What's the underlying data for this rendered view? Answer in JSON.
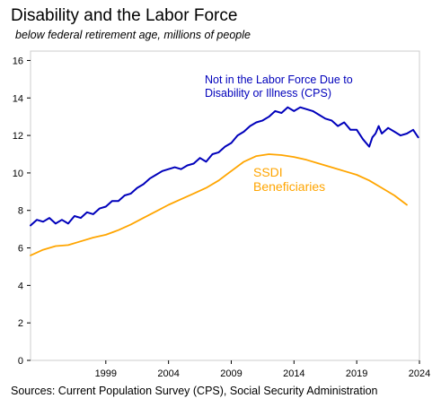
{
  "title": "Disability and the Labor Force",
  "subtitle": "below federal retirement age, millions of people",
  "source": "Sources: Current Population Survey (CPS), Social Security Administration",
  "colors": {
    "cps": "#0000bb",
    "ssdi": "#ffa500",
    "frame": "#cccccc"
  },
  "chart_data": {
    "type": "line",
    "xlim": [
      1993,
      2024
    ],
    "ylim": [
      0,
      16.5
    ],
    "x_ticks": [
      "1999",
      "2004",
      "2009",
      "2014",
      "2019",
      "2024"
    ],
    "y_ticks": [
      "0",
      "2",
      "4",
      "6",
      "8",
      "10",
      "12",
      "14",
      "16"
    ],
    "grid": false,
    "series": [
      {
        "name": "Not in the Labor Force Due to Disability or Illness (CPS)",
        "label_lines": [
          "Not in the Labor Force Due to",
          "Disability or Illness (CPS)"
        ],
        "color": "#0000bb",
        "x": [
          1993.0,
          1993.5,
          1994.0,
          1994.5,
          1995.0,
          1995.5,
          1996.0,
          1996.5,
          1997.0,
          1997.5,
          1998.0,
          1998.5,
          1999.0,
          1999.5,
          2000.0,
          2000.5,
          2001.0,
          2001.5,
          2002.0,
          2002.5,
          2003.0,
          2003.5,
          2004.0,
          2004.5,
          2005.0,
          2005.5,
          2006.0,
          2006.5,
          2007.0,
          2007.5,
          2008.0,
          2008.5,
          2009.0,
          2009.5,
          2010.0,
          2010.5,
          2011.0,
          2011.5,
          2012.0,
          2012.5,
          2013.0,
          2013.5,
          2014.0,
          2014.5,
          2015.0,
          2015.5,
          2016.0,
          2016.5,
          2017.0,
          2017.5,
          2018.0,
          2018.5,
          2019.0,
          2019.5,
          2020.0,
          2020.25,
          2020.5,
          2020.75,
          2021.0,
          2021.5,
          2022.0,
          2022.5,
          2023.0,
          2023.5,
          2023.9
        ],
        "y": [
          7.2,
          7.5,
          7.4,
          7.6,
          7.3,
          7.5,
          7.3,
          7.7,
          7.6,
          7.9,
          7.8,
          8.1,
          8.2,
          8.5,
          8.5,
          8.8,
          8.9,
          9.2,
          9.4,
          9.7,
          9.9,
          10.1,
          10.2,
          10.3,
          10.2,
          10.4,
          10.5,
          10.8,
          10.6,
          11.0,
          11.1,
          11.4,
          11.6,
          12.0,
          12.2,
          12.5,
          12.7,
          12.8,
          13.0,
          13.3,
          13.2,
          13.5,
          13.3,
          13.5,
          13.4,
          13.3,
          13.1,
          12.9,
          12.8,
          12.5,
          12.7,
          12.3,
          12.3,
          11.8,
          11.4,
          11.9,
          12.1,
          12.5,
          12.1,
          12.4,
          12.2,
          12.0,
          12.1,
          12.3,
          11.9
        ]
      },
      {
        "name": "SSDI Beneficiaries",
        "label_lines": [
          "SSDI",
          "Beneficiaries"
        ],
        "color": "#ffa500",
        "x": [
          1993,
          1994,
          1995,
          1996,
          1997,
          1998,
          1999,
          2000,
          2001,
          2002,
          2003,
          2004,
          2005,
          2006,
          2007,
          2008,
          2009,
          2010,
          2011,
          2012,
          2013,
          2014,
          2015,
          2016,
          2017,
          2018,
          2019,
          2020,
          2021,
          2022,
          2023
        ],
        "y": [
          5.6,
          5.9,
          6.1,
          6.15,
          6.35,
          6.55,
          6.7,
          6.95,
          7.25,
          7.6,
          7.95,
          8.3,
          8.6,
          8.9,
          9.2,
          9.6,
          10.1,
          10.6,
          10.9,
          11.0,
          10.95,
          10.85,
          10.7,
          10.5,
          10.3,
          10.1,
          9.9,
          9.6,
          9.2,
          8.8,
          8.3
        ]
      }
    ]
  }
}
